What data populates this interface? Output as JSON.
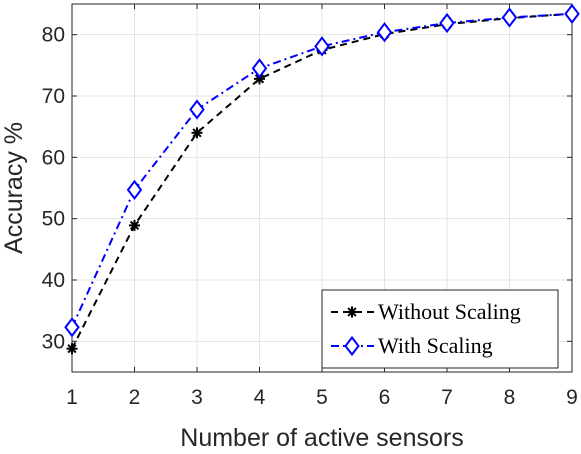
{
  "chart_data": {
    "type": "line",
    "xlabel": "Number of active sensors",
    "ylabel": "Accuracy %",
    "xlim": [
      1,
      9
    ],
    "ylim": [
      25,
      85
    ],
    "xticks": [
      1,
      2,
      3,
      4,
      5,
      6,
      7,
      8,
      9
    ],
    "yticks": [
      30,
      40,
      50,
      60,
      70,
      80
    ],
    "grid": true,
    "legend_position": "bottom-right",
    "x": [
      1,
      2,
      3,
      4,
      5,
      6,
      7,
      8,
      9
    ],
    "series": [
      {
        "name": "Without Scaling",
        "values": [
          28.8,
          48.9,
          64.0,
          72.8,
          77.5,
          80.1,
          81.7,
          82.7,
          83.4
        ],
        "color": "#000000",
        "line_style": "dashed",
        "marker": "asterisk"
      },
      {
        "name": "With Scaling",
        "values": [
          32.3,
          54.7,
          67.8,
          74.5,
          78.1,
          80.4,
          81.9,
          82.8,
          83.4
        ],
        "color": "#0000ff",
        "line_style": "dash-dot",
        "marker": "diamond"
      }
    ]
  }
}
